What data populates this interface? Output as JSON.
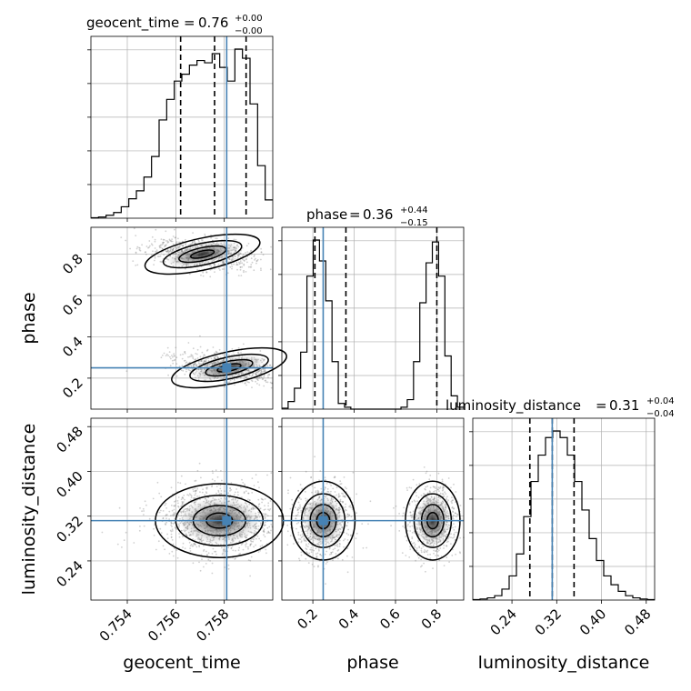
{
  "chart_data": {
    "type": "corner",
    "parameters": [
      "geocent_time",
      "phase",
      "luminosity_distance"
    ],
    "titles": [
      {
        "name": "geocent_time",
        "median": "0.76",
        "plus": "+0.00",
        "minus": "−0.00"
      },
      {
        "name": "phase",
        "median": "0.36",
        "plus": "+0.44",
        "minus": "−0.15"
      },
      {
        "name": "luminosity_distance",
        "median": "0.31",
        "plus": "+0.04",
        "minus": "−0.04"
      }
    ],
    "axis_labels": {
      "x": [
        "geocent_time",
        "phase",
        "luminosity_distance"
      ],
      "y": [
        "phase",
        "luminosity_distance"
      ]
    },
    "ranges": {
      "geocent_time": [
        0.7525,
        0.76
      ],
      "phase": [
        0.05,
        0.93
      ],
      "luminosity_distance": [
        0.17,
        0.495
      ]
    },
    "ticks": {
      "geocent_time": [
        "0.754",
        "0.756",
        "0.758"
      ],
      "phase": [
        "0.2",
        "0.4",
        "0.6",
        "0.8"
      ],
      "luminosity_distance": [
        "0.24",
        "0.32",
        "0.40",
        "0.48"
      ]
    },
    "truths": {
      "geocent_time": 0.7581,
      "phase": 0.25,
      "luminosity_distance": 0.312
    },
    "quantiles": {
      "geocent_time": [
        0.7562,
        0.7576,
        0.7589
      ],
      "phase": [
        0.21,
        0.36,
        0.8
      ],
      "luminosity_distance": [
        0.272,
        0.312,
        0.351
      ]
    },
    "histograms": {
      "geocent_time": [
        0.2,
        0.5,
        1.3,
        2.5,
        5,
        8.5,
        12,
        18,
        27,
        43,
        52,
        60,
        63,
        67,
        69,
        68,
        72,
        66,
        60,
        74,
        70,
        50,
        23,
        8
      ],
      "phase": [
        0.5,
        4,
        11,
        30,
        70,
        89,
        78,
        57,
        25,
        3,
        1,
        0,
        0,
        0,
        0,
        0,
        0,
        0,
        0,
        1,
        5,
        25,
        56,
        77,
        88,
        70,
        28,
        7,
        1
      ],
      "luminosity_distance": [
        0.2,
        0.5,
        1,
        2,
        5,
        11,
        21,
        38,
        54,
        66,
        74,
        77,
        74,
        66,
        54,
        41,
        28,
        18,
        11,
        7,
        4,
        2,
        1,
        0.5,
        0.2
      ]
    },
    "grid": true,
    "truth_color": "#4682b4",
    "line_color": "#000000"
  }
}
